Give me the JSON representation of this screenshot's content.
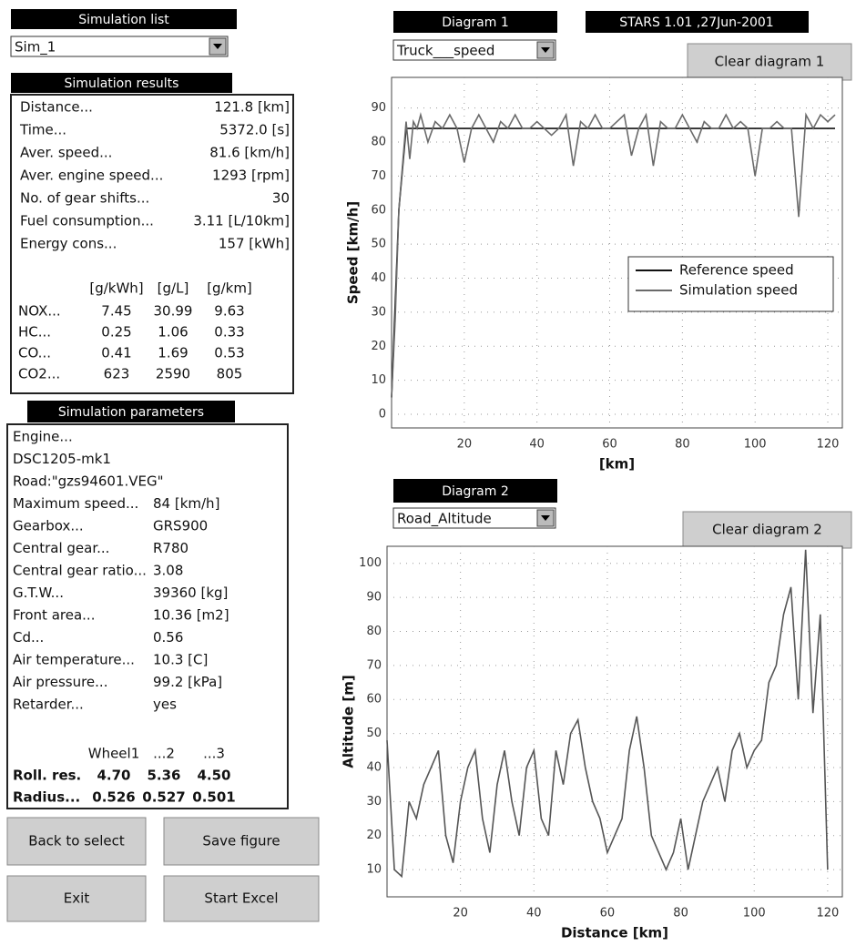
{
  "simulation_list": {
    "title": "Simulation list",
    "selected": "Sim_1"
  },
  "simulation_results": {
    "title": "Simulation results",
    "rows": [
      [
        "Distance...",
        "121.8 [km]"
      ],
      [
        "Time...",
        "5372.0 [s]"
      ],
      [
        "Aver. speed...",
        "81.6 [km/h]"
      ],
      [
        "Aver. engine speed...",
        "1293 [rpm]"
      ],
      [
        "No. of gear shifts...",
        "30"
      ],
      [
        "Fuel consumption...",
        "3.11 [L/10km]"
      ],
      [
        "Energy cons...",
        "157 [kWh]"
      ]
    ],
    "emissions": {
      "columns": [
        "[g/kWh]",
        "[g/L]",
        "[g/km]"
      ],
      "rows": [
        [
          "NOX...",
          "7.45",
          "30.99",
          "9.63"
        ],
        [
          "HC...",
          "0.25",
          "1.06",
          "0.33"
        ],
        [
          "CO...",
          "0.41",
          "1.69",
          "0.53"
        ],
        [
          "CO2...",
          "623",
          "2590",
          "805"
        ]
      ]
    }
  },
  "simulation_parameters": {
    "title": "Simulation parameters",
    "rows": [
      [
        "Engine..."
      ],
      [
        "DSC1205-mk1"
      ],
      [
        "Road:\"gzs94601.VEG\""
      ],
      [
        "Maximum speed...",
        "84 [km/h]"
      ],
      [
        "Gearbox...",
        "GRS900"
      ],
      [
        "Central gear...",
        "R780"
      ],
      [
        "Central gear ratio...",
        "3.08"
      ],
      [
        "G.T.W...",
        "39360 [kg]"
      ],
      [
        "Front area...",
        "10.36 [m2]"
      ],
      [
        "Cd...",
        "0.56"
      ],
      [
        "Air temperature...",
        "10.3 [C]"
      ],
      [
        "Air pressure...",
        "99.2 [kPa]"
      ],
      [
        "Retarder...",
        "yes"
      ]
    ],
    "wheels": {
      "columns": [
        "Wheel1",
        "...2",
        "...3"
      ],
      "rows": [
        [
          "Roll. res.",
          "4.70",
          "5.36",
          "4.50"
        ],
        [
          "Radius...",
          "0.526",
          "0.527",
          "0.501"
        ]
      ]
    }
  },
  "buttons": [
    "Back to select",
    "Save figure",
    "Exit",
    "Start Excel"
  ],
  "version": "STARS 1.01 ,27Jun-2001",
  "diagrams": [
    {
      "title": "Diagram 1",
      "selected": "Truck___speed",
      "clear_button": "Clear diagram 1"
    },
    {
      "title": "Diagram 2",
      "selected": "Road_Altitude",
      "clear_button": "Clear diagram 2"
    }
  ],
  "chart_data": [
    {
      "type": "line",
      "xlabel": "[km]",
      "ylabel": "Speed [km/h]",
      "xlim": [
        0,
        124
      ],
      "ylim": [
        -4,
        99
      ],
      "xticks": [
        20,
        40,
        60,
        80,
        100,
        120
      ],
      "yticks": [
        0,
        10,
        20,
        30,
        40,
        50,
        60,
        70,
        80,
        90
      ],
      "grid": true,
      "legend": "right",
      "series": [
        {
          "name": "Reference speed",
          "color": "#111111",
          "x": [
            0,
            2,
            4,
            122
          ],
          "values": [
            5,
            60,
            84,
            84
          ]
        },
        {
          "name": "Simulation speed",
          "color": "#6a6a6a",
          "x": [
            0,
            1,
            2,
            3,
            4,
            5,
            6,
            7,
            8,
            10,
            12,
            14,
            16,
            18,
            20,
            22,
            24,
            26,
            28,
            30,
            32,
            34,
            36,
            38,
            40,
            42,
            44,
            46,
            48,
            50,
            52,
            54,
            56,
            58,
            60,
            62,
            64,
            66,
            68,
            70,
            72,
            74,
            76,
            78,
            80,
            82,
            84,
            86,
            88,
            90,
            92,
            94,
            96,
            98,
            100,
            102,
            104,
            106,
            108,
            110,
            112,
            114,
            116,
            118,
            120,
            122
          ],
          "values": [
            5,
            28,
            60,
            73,
            86,
            75,
            86,
            84,
            88,
            80,
            86,
            84,
            88,
            84,
            74,
            84,
            88,
            84,
            80,
            86,
            84,
            88,
            84,
            84,
            86,
            84,
            82,
            84,
            88,
            73,
            86,
            84,
            88,
            84,
            84,
            86,
            88,
            76,
            84,
            88,
            73,
            86,
            84,
            84,
            88,
            84,
            80,
            86,
            84,
            84,
            88,
            84,
            86,
            84,
            70,
            84,
            84,
            86,
            84,
            84,
            58,
            88,
            84,
            88,
            86,
            88
          ]
        }
      ]
    },
    {
      "type": "line",
      "xlabel": "Distance [km]",
      "ylabel": "Altitude [m]",
      "xlim": [
        0,
        124
      ],
      "ylim": [
        2,
        105
      ],
      "xticks": [
        20,
        40,
        60,
        80,
        100,
        120
      ],
      "yticks": [
        10,
        20,
        30,
        40,
        50,
        60,
        70,
        80,
        90,
        100
      ],
      "grid": true,
      "color": "#555555",
      "x": [
        0,
        2,
        4,
        6,
        8,
        10,
        12,
        14,
        16,
        18,
        20,
        22,
        24,
        26,
        28,
        30,
        32,
        34,
        36,
        38,
        40,
        42,
        44,
        46,
        48,
        50,
        52,
        54,
        56,
        58,
        60,
        62,
        64,
        66,
        68,
        70,
        72,
        74,
        76,
        78,
        80,
        82,
        84,
        86,
        88,
        90,
        92,
        94,
        96,
        98,
        100,
        102,
        104,
        106,
        108,
        110,
        112,
        114,
        116,
        118,
        120
      ],
      "values": [
        48,
        10,
        8,
        30,
        25,
        35,
        40,
        45,
        20,
        12,
        30,
        40,
        45,
        25,
        15,
        35,
        45,
        30,
        20,
        40,
        45,
        25,
        20,
        45,
        35,
        50,
        54,
        40,
        30,
        25,
        15,
        20,
        25,
        45,
        55,
        40,
        20,
        15,
        10,
        15,
        25,
        10,
        20,
        30,
        35,
        40,
        30,
        45,
        50,
        40,
        45,
        48,
        65,
        70,
        85,
        93,
        60,
        104,
        56,
        85,
        10
      ]
    }
  ]
}
